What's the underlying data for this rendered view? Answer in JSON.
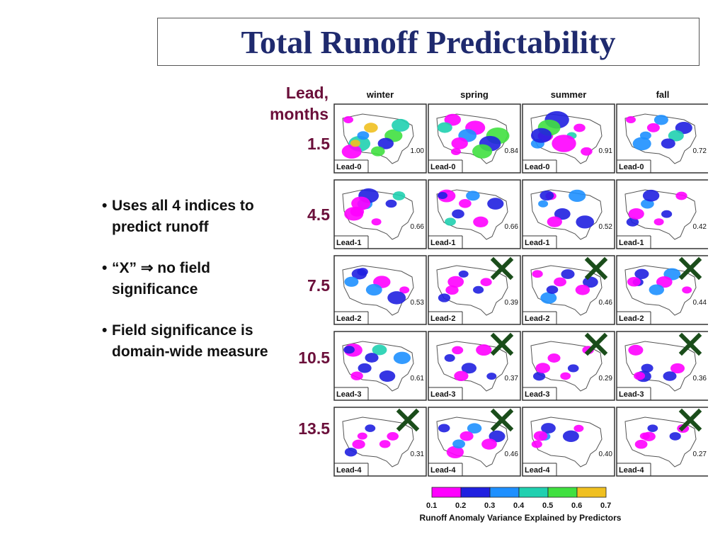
{
  "title": "Total Runoff Predictability",
  "bullets": [
    "Uses all 4 indices to predict runoff",
    "“X” ⇒ no field significance",
    "Field significance is domain-wide measure"
  ],
  "lead_header": [
    "Lead,",
    "months"
  ],
  "leads": [
    "1.5",
    "4.5",
    "7.5",
    "10.5",
    "13.5"
  ],
  "seasons": [
    "winter",
    "spring",
    "summer",
    "fall"
  ],
  "row_labels": [
    "Lead-0",
    "Lead-1",
    "Lead-2",
    "Lead-3",
    "Lead-4"
  ],
  "values": [
    [
      "1.00",
      "0.84",
      "0.91",
      "0.72"
    ],
    [
      "0.66",
      "0.66",
      "0.52",
      "0.42"
    ],
    [
      "0.53",
      "0.39",
      "0.46",
      "0.44"
    ],
    [
      "0.61",
      "0.37",
      "0.29",
      "0.36"
    ],
    [
      "0.31",
      "0.46",
      "0.40",
      "0.27"
    ]
  ],
  "no_significance": [
    [
      false,
      false,
      false,
      false
    ],
    [
      false,
      false,
      false,
      false
    ],
    [
      false,
      true,
      true,
      true
    ],
    [
      false,
      true,
      true,
      true
    ],
    [
      true,
      true,
      false,
      true
    ]
  ],
  "colorbar": {
    "ticks": [
      "0.1",
      "0.2",
      "0.3",
      "0.4",
      "0.5",
      "0.6",
      "0.7"
    ],
    "colors": [
      "#ff00ff",
      "#2020e0",
      "#1e90ff",
      "#20d0b0",
      "#40e040",
      "#f0c020"
    ],
    "title": "Runoff Anomaly Variance Explained by Predictors"
  },
  "colors": {
    "title": "#1f2a6e",
    "lead_label": "#6b0f3a",
    "x_mark": "#1a4d1a"
  }
}
